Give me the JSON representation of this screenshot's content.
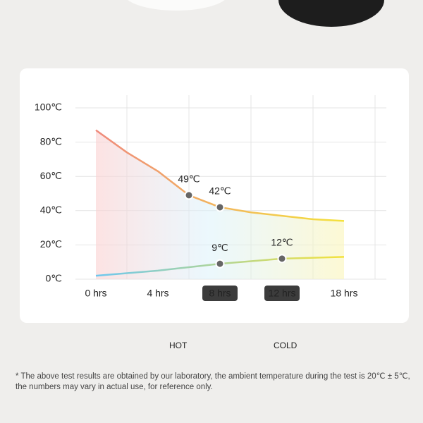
{
  "chart_data": {
    "type": "line",
    "categories": [
      "0 hrs",
      null,
      "4 hrs",
      null,
      "8 hrs",
      null,
      "12 hrs",
      null,
      "18 hrs"
    ],
    "highlight": [
      4,
      6
    ],
    "series": [
      {
        "name": "HOT",
        "color": [
          "#ef8a7c",
          "#f4e23c"
        ],
        "values": [
          87,
          74,
          63,
          49,
          42,
          39,
          37,
          35,
          34
        ],
        "value_labels": [
          null,
          null,
          null,
          "49℃",
          "42℃",
          null,
          null,
          null,
          null
        ]
      },
      {
        "name": "COLD",
        "color": [
          "#6ec8f0",
          "#f4e23c"
        ],
        "values": [
          2,
          3.5,
          5,
          7,
          9,
          10.5,
          12,
          12.5,
          13
        ],
        "value_labels": [
          null,
          null,
          null,
          null,
          "9℃",
          null,
          "12℃",
          null,
          null
        ]
      }
    ],
    "ylim": [
      0,
      100
    ],
    "yticks": [
      {
        "value": 0,
        "label": "0℃"
      },
      {
        "value": 20,
        "label": "20℃"
      },
      {
        "value": 40,
        "label": "40℃"
      },
      {
        "value": 60,
        "label": "60℃"
      },
      {
        "value": 80,
        "label": "80℃"
      },
      {
        "value": 100,
        "label": "100℃"
      }
    ],
    "grid": true,
    "footnote": "* The above test results are obtained by our laboratory, the ambient temperature during the test is 20℃ ± 5℃, the numbers may vary in actual use, for reference only."
  }
}
